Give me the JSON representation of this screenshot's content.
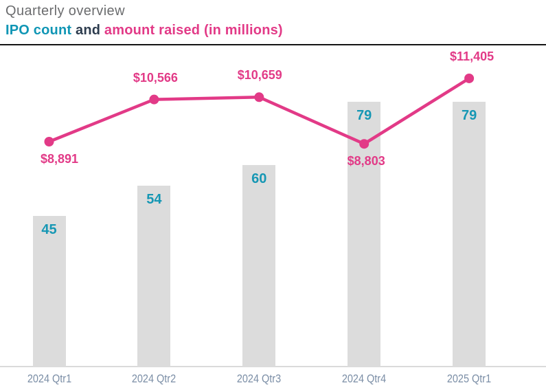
{
  "header": {
    "title": "Quarterly overview",
    "subtitle_parts": [
      {
        "text": "IPO count",
        "color": "#1096b5"
      },
      {
        "text": " and ",
        "color": "#2d3c4e"
      },
      {
        "text": "amount raised (in millions)",
        "color": "#e23a87"
      }
    ]
  },
  "colors": {
    "title_gray": "#6b6c6e",
    "bar_fill": "#dcdcdc",
    "bar_label_teal": "#1697b4",
    "line_pink": "#e23a87",
    "axis_label_blue_gray": "#7b8ea6",
    "divider_black": "#141414",
    "axis_line_gray": "#dadada"
  },
  "chart_data": {
    "type": "bar+line combo",
    "title": "Quarterly overview",
    "subtitle": "IPO count and amount raised (in millions)",
    "categories": [
      "2024 Qtr1",
      "2024 Qtr2",
      "2024 Qtr3",
      "2024 Qtr4",
      "2025 Qtr1"
    ],
    "series": [
      {
        "name": "IPO count",
        "type": "bar",
        "values": [
          45,
          54,
          60,
          79,
          79
        ],
        "color": "#dcdcdc",
        "label_color": "#1697b4"
      },
      {
        "name": "amount raised (in millions)",
        "type": "line",
        "values": [
          8891,
          10566,
          10659,
          8803,
          11405
        ],
        "labels": [
          "$8,891",
          "$10,566",
          "$10,659",
          "$8,803",
          "$11,405"
        ],
        "label_positions": [
          "below",
          "above",
          "above",
          "below",
          "above"
        ],
        "color": "#e23a87"
      }
    ],
    "xlabel": "",
    "ylabel": "",
    "grid": false,
    "legend_position": "none (encoded in subtitle colors)",
    "value_labels_shown": true
  }
}
